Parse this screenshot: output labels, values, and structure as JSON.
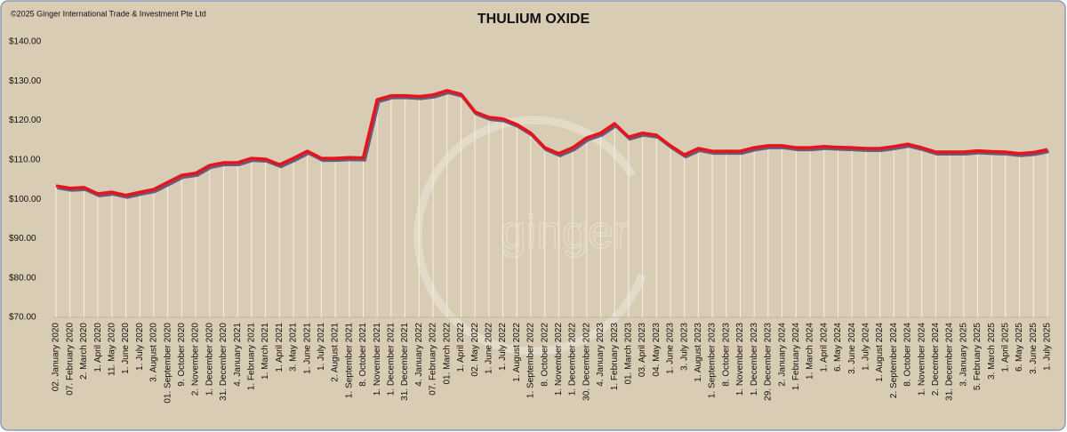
{
  "chart_data": {
    "type": "line",
    "title": "THULIUM OXIDE",
    "copyright": "©2025 Ginger International Trade & Investment Pte Ltd",
    "watermark": "ginger",
    "categories": [
      "02. January 2020",
      "07. February 2020",
      "2. March 2020",
      "1. April 2020",
      "11. May 2020",
      "1. June 2020",
      "1. July 2020",
      "3. August 2020",
      "01. September 2020",
      "9. October 2020",
      "2. November 2020",
      "1. December 2020",
      "31. December 2020",
      "4. January 2021",
      "1. February 2021",
      "1. March 2021",
      "1. April 2021",
      "3. May 2021",
      "1. June 2021",
      "1. July 2021",
      "2. August 2021",
      "1. September 2021",
      "8. October 2021",
      "1. November 2021",
      "1. December 2021",
      "31. December 2021",
      "4. January 2022",
      "07. February 2022",
      "01. March 2022",
      "1. April 2022",
      "02. May 2022",
      "1. June 2022",
      "1. July 2022",
      "1. August 2022",
      "1. September 2022",
      "8. October 2022",
      "1. November 2022",
      "1. December 2022",
      "30. December 2022",
      "4. January 2023",
      "1. February 2023",
      "01. March 2023",
      "03. April 2023",
      "04. May 2023",
      "1. June 2023",
      "3. July 2023",
      "1. August 2023",
      "1. September 2023",
      "8. October 2023",
      "1. November 2023",
      "1. December 2023",
      "29. December 2023",
      "2. January 2024",
      "1. February 2024",
      "1. March 2024",
      "1. April 2024",
      "6. May 2024",
      "3. June 2024",
      "1. July 2024",
      "1. August 2024",
      "2. September 2024",
      "8. October 2024",
      "1. November 2024",
      "2. December 2024",
      "31. December 2024",
      "3. January 2025",
      "5. February 2025",
      "3. March 2025",
      "1. April 2025",
      "6. May 2025",
      "3. June 2025",
      "1. July 2025"
    ],
    "series": [
      {
        "name": "Thulium Oxide",
        "color": "#e8141b",
        "values": [
          103.4,
          102.8,
          103,
          101.4,
          101.8,
          101,
          101.8,
          102.5,
          104.3,
          106.1,
          106.6,
          108.6,
          109.3,
          109.3,
          110.4,
          110.2,
          108.8,
          110.4,
          112.2,
          110.4,
          110.4,
          110.6,
          110.5,
          125.3,
          126.3,
          126.3,
          126.1,
          126.5,
          127.6,
          126.7,
          122.2,
          120.8,
          120.4,
          119,
          116.8,
          113.1,
          111.6,
          113.1,
          115.6,
          116.8,
          119.2,
          115.8,
          116.8,
          116.3,
          113.6,
          111.3,
          112.9,
          112.2,
          112.2,
          112.2,
          113.1,
          113.6,
          113.6,
          113.1,
          113.1,
          113.4,
          113.2,
          113.1,
          112.9,
          112.9,
          113.4,
          114,
          113.1,
          112,
          112,
          112,
          112.3,
          112.1,
          112,
          111.6,
          111.9,
          112.6
        ]
      }
    ],
    "ylim": [
      70,
      140
    ],
    "yticks": [
      {
        "value": 70,
        "label": "$70.00"
      },
      {
        "value": 80,
        "label": "$80.00"
      },
      {
        "value": 90,
        "label": "$90.00"
      },
      {
        "value": 100,
        "label": "$100.00"
      },
      {
        "value": 110,
        "label": "$110.00"
      },
      {
        "value": 120,
        "label": "$120.00"
      },
      {
        "value": 130,
        "label": "$130.00"
      },
      {
        "value": 140,
        "label": "$140.00"
      }
    ],
    "drop_lines": true
  }
}
